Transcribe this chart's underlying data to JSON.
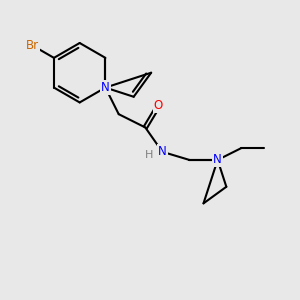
{
  "background_color": "#e8e8e8",
  "bond_color": "#000000",
  "bond_width": 1.5,
  "atom_colors": {
    "N": "#0000ff",
    "O": "#ff0000",
    "Br": "#cc6600",
    "C": "#000000",
    "H": "#808080"
  },
  "figsize": [
    3.0,
    3.0
  ],
  "dpi": 100,
  "xlim": [
    0,
    10
  ],
  "ylim": [
    0,
    10
  ]
}
